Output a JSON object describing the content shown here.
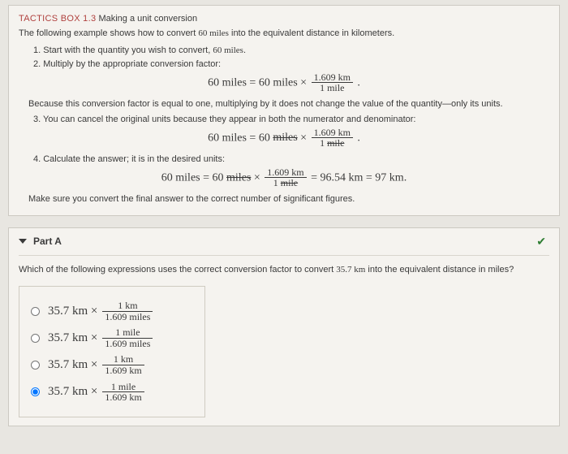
{
  "tactics": {
    "label": "TACTICS BOX 1.3",
    "title": "Making a unit conversion",
    "intro_pre": "The following example shows how to convert ",
    "intro_val": "60 miles",
    "intro_post": " into the equivalent distance in kilometers.",
    "step1_pre": "1. Start with the quantity you wish to convert, ",
    "step1_val": "60 miles",
    "step1_post": ".",
    "step2": "2. Multiply by the appropriate conversion factor:",
    "eq1_lhs": "60 miles",
    "eq1_eq": " = ",
    "eq1_rhs": "60 miles × ",
    "eq1_frac_top": "1.609 km",
    "eq1_frac_bot": "1 mile",
    "because": "Because this conversion factor is equal to one, multiplying by it does not change the value of the quantity—only its units.",
    "step3": "3. You can cancel the original units because they appear in both the numerator and denominator:",
    "eq2_lhs": "60 miles",
    "eq2_eq": " = ",
    "eq2_rhs_a": "60 ",
    "eq2_rhs_strike": "miles",
    "eq2_rhs_b": " × ",
    "eq2_frac_top": "1.609 km",
    "eq2_frac_bot_a": "1 ",
    "eq2_frac_bot_strike": "mile",
    "step4": "4. Calculate the answer; it is in the desired units:",
    "eq3_lhs": "60 miles",
    "eq3_eq": " = ",
    "eq3_a": "60 ",
    "eq3_strike1": "miles",
    "eq3_b": " × ",
    "eq3_frac_top": "1.609 km",
    "eq3_frac_bot_a": "1 ",
    "eq3_frac_bot_strike": "mile",
    "eq3_c": " = 96.54 km = 97 km.",
    "sig": "Make sure you convert the final answer to the correct number of significant figures."
  },
  "part": {
    "label": "Part A",
    "question_pre": "Which of the following expressions uses the correct conversion factor to convert ",
    "question_val": "35.7 km",
    "question_post": " into the equivalent distance in miles?",
    "options": [
      {
        "lhs": "35.7 km × ",
        "top": "1 km",
        "bot": "1.609 miles",
        "selected": false
      },
      {
        "lhs": "35.7 km × ",
        "top": "1 mile",
        "bot": "1.609 miles",
        "selected": false
      },
      {
        "lhs": "35.7 km × ",
        "top": "1 km",
        "bot": "1.609 km",
        "selected": false
      },
      {
        "lhs": "35.7 km × ",
        "top": "1 mile",
        "bot": "1.609 km",
        "selected": true
      }
    ]
  },
  "colors": {
    "background": "#e8e6e1",
    "box": "#f5f3ef",
    "red": "#b0413e",
    "check": "#2e7d32"
  }
}
